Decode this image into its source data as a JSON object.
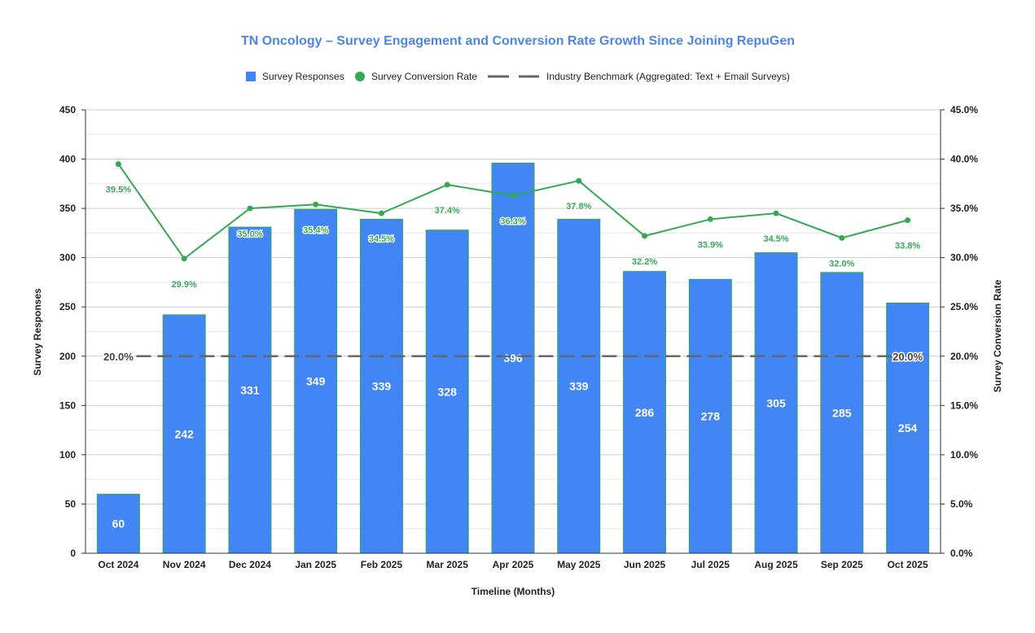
{
  "chart_data": {
    "type": "bar+line",
    "title": "TN Oncology – Survey Engagement and Conversion Rate Growth Since Joining RepuGen",
    "xlabel": "Timeline (Months)",
    "ylabel": "Survey Responses",
    "y2label": "Survey Conversion Rate",
    "ylim": [
      0,
      450
    ],
    "y2lim": [
      0,
      45
    ],
    "yticks": [
      "0",
      "50",
      "100",
      "150",
      "200",
      "250",
      "300",
      "350",
      "400",
      "450"
    ],
    "y2ticks": [
      "0.0%",
      "5.0%",
      "10.0%",
      "15.0%",
      "20.0%",
      "25.0%",
      "30.0%",
      "35.0%",
      "40.0%",
      "45.0%"
    ],
    "grid": true,
    "legend_position": "top",
    "categories": [
      "Oct 2024",
      "Nov 2024",
      "Dec 2024",
      "Jan 2025",
      "Feb 2025",
      "Mar 2025",
      "Apr 2025",
      "May 2025",
      "Jun 2025",
      "Jul 2025",
      "Aug 2025",
      "Sep 2025",
      "Oct 2025"
    ],
    "series": [
      {
        "name": "Survey Responses",
        "type": "bar",
        "axis": "left",
        "color": "#4285f4",
        "values": [
          60,
          242,
          331,
          349,
          339,
          328,
          396,
          339,
          286,
          278,
          305,
          285,
          254
        ],
        "labels": [
          "60",
          "242",
          "331",
          "349",
          "339",
          "328",
          "396",
          "339",
          "286",
          "278",
          "305",
          "285",
          "254"
        ]
      },
      {
        "name": "Survey Conversion Rate",
        "type": "line",
        "axis": "right",
        "color": "#34a853",
        "values": [
          39.5,
          29.9,
          35.0,
          35.4,
          34.5,
          37.4,
          36.3,
          37.8,
          32.2,
          33.9,
          34.5,
          32.0,
          33.8
        ],
        "labels": [
          "39.5%",
          "29.9%",
          "35.0%",
          "35.4%",
          "34.5%",
          "37.4%",
          "36.3%",
          "37.8%",
          "32.2%",
          "33.9%",
          "34.5%",
          "32.0%",
          "33.8%"
        ]
      },
      {
        "name": "Industry Benchmark (Aggregated: Text + Email Surveys)",
        "type": "dashed-line",
        "axis": "right",
        "color": "#666666",
        "value": 20.0,
        "label": "20.0%"
      }
    ],
    "title_color": "#4a86e8"
  }
}
